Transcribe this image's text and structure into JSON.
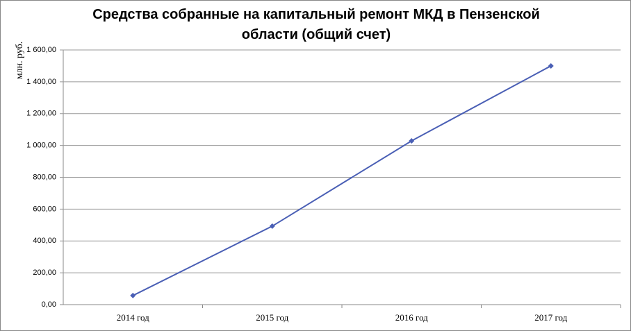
{
  "chart_data": {
    "type": "line",
    "title": "Средства собранные на капитальный ремонт МКД в Пензенской области (общий счет)",
    "y_label": "млн. руб.",
    "categories": [
      "2014 год",
      "2015 год",
      "2016 год",
      "2017 год"
    ],
    "series": [
      {
        "name": "Средства",
        "color": "#4a5fb5",
        "values": [
          57,
          493,
          1029,
          1500
        ]
      }
    ],
    "ylim": [
      0,
      1600
    ],
    "yticks": [
      {
        "value": 0,
        "label": "0,00"
      },
      {
        "value": 200,
        "label": "200,00"
      },
      {
        "value": 400,
        "label": "400,00"
      },
      {
        "value": 600,
        "label": "600,00"
      },
      {
        "value": 800,
        "label": "800,00"
      },
      {
        "value": 1000,
        "label": "1 000,00"
      },
      {
        "value": 1200,
        "label": "1 200,00"
      },
      {
        "value": 1400,
        "label": "1 400,00"
      },
      {
        "value": 1600,
        "label": "1 600,00"
      }
    ],
    "grid": true
  }
}
